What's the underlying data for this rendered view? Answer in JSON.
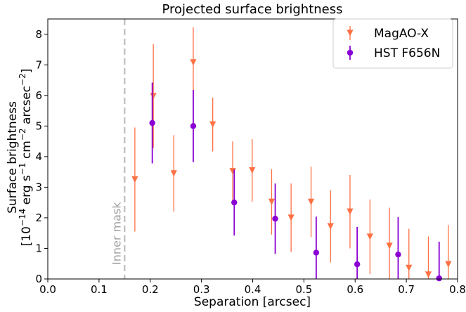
{
  "chart_data": {
    "type": "scatter",
    "title": "Projected surface brightness",
    "xlabel": "Separation [arcsec]",
    "ylabel_line1": "Surface brightness",
    "ylabel_line2_parts": [
      "[10",
      "−14",
      " erg s",
      "−1",
      " cm",
      "−2",
      " arcsec",
      "−2",
      "]"
    ],
    "xlim": [
      0.0,
      0.8
    ],
    "ylim": [
      0,
      8.5
    ],
    "xticks": [
      "0.0",
      "0.1",
      "0.2",
      "0.3",
      "0.4",
      "0.5",
      "0.6",
      "0.7",
      "0.8"
    ],
    "yticks": [
      "0",
      "1",
      "2",
      "3",
      "4",
      "5",
      "6",
      "7",
      "8"
    ],
    "grid": false,
    "legend_position": "top-right",
    "inner_mask": {
      "x": 0.15,
      "label": "Inner mask",
      "color": "#bdbdbd"
    },
    "series": [
      {
        "name": "MagAO-X",
        "color": "#ff7043",
        "marker": "triangle-down",
        "points": [
          {
            "x": 0.17,
            "y": 3.25,
            "err": 1.7
          },
          {
            "x": 0.206,
            "y": 5.98,
            "err": 1.7
          },
          {
            "x": 0.246,
            "y": 3.45,
            "err": 1.25
          },
          {
            "x": 0.284,
            "y": 7.08,
            "err": 1.15
          },
          {
            "x": 0.322,
            "y": 5.05,
            "err": 0.88
          },
          {
            "x": 0.361,
            "y": 3.52,
            "err": 0.98
          },
          {
            "x": 0.399,
            "y": 3.55,
            "err": 1.02
          },
          {
            "x": 0.437,
            "y": 2.52,
            "err": 1.07
          },
          {
            "x": 0.475,
            "y": 2.0,
            "err": 1.12
          },
          {
            "x": 0.514,
            "y": 2.52,
            "err": 1.15
          },
          {
            "x": 0.552,
            "y": 1.72,
            "err": 1.18
          },
          {
            "x": 0.59,
            "y": 2.2,
            "err": 1.2
          },
          {
            "x": 0.629,
            "y": 1.38,
            "err": 1.22
          },
          {
            "x": 0.667,
            "y": 1.08,
            "err": 1.25
          },
          {
            "x": 0.705,
            "y": 0.36,
            "err": 1.28
          },
          {
            "x": 0.743,
            "y": 0.14,
            "err": 1.25
          },
          {
            "x": 0.782,
            "y": 0.48,
            "err": 1.28
          }
        ]
      },
      {
        "name": "HST F656N",
        "color": "#8a00d4",
        "marker": "circle",
        "points": [
          {
            "x": 0.204,
            "y": 5.1,
            "err": 1.32
          },
          {
            "x": 0.284,
            "y": 5.0,
            "err": 1.18
          },
          {
            "x": 0.364,
            "y": 2.5,
            "err": 1.08
          },
          {
            "x": 0.444,
            "y": 1.97,
            "err": 1.15
          },
          {
            "x": 0.524,
            "y": 0.86,
            "err": 1.18
          },
          {
            "x": 0.604,
            "y": 0.48,
            "err": 1.22
          },
          {
            "x": 0.684,
            "y": 0.8,
            "err": 1.22
          },
          {
            "x": 0.764,
            "y": 0.02,
            "err": 1.2
          }
        ]
      }
    ]
  }
}
